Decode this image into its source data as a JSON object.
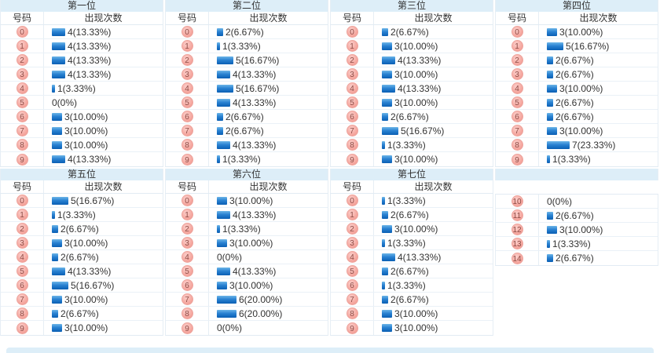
{
  "labels": {
    "number_header": "号码",
    "count_header": "出现次数"
  },
  "colors": {
    "band_bg": "#ddeef8",
    "bar_top": "#6cb5e8",
    "bar_bottom": "#0a5fb4",
    "badge_bg": "#f5a79f",
    "badge_border": "#eda49d",
    "badge_text": "#8d4a44",
    "row_border": "#eaf1f7",
    "text": "#333333"
  },
  "sections": [
    {
      "tables": [
        {
          "title": "第一位",
          "show_headers": true,
          "rows": [
            {
              "n": 0,
              "count": 4,
              "label": "4(13.33%)"
            },
            {
              "n": 1,
              "count": 4,
              "label": "4(13.33%)"
            },
            {
              "n": 2,
              "count": 4,
              "label": "4(13.33%)"
            },
            {
              "n": 3,
              "count": 4,
              "label": "4(13.33%)"
            },
            {
              "n": 4,
              "count": 1,
              "label": "1(3.33%)"
            },
            {
              "n": 5,
              "count": 0,
              "label": "0(0%)"
            },
            {
              "n": 6,
              "count": 3,
              "label": "3(10.00%)"
            },
            {
              "n": 7,
              "count": 3,
              "label": "3(10.00%)"
            },
            {
              "n": 8,
              "count": 3,
              "label": "3(10.00%)"
            },
            {
              "n": 9,
              "count": 4,
              "label": "4(13.33%)"
            }
          ]
        },
        {
          "title": "第二位",
          "show_headers": true,
          "rows": [
            {
              "n": 0,
              "count": 2,
              "label": "2(6.67%)"
            },
            {
              "n": 1,
              "count": 1,
              "label": "1(3.33%)"
            },
            {
              "n": 2,
              "count": 5,
              "label": "5(16.67%)"
            },
            {
              "n": 3,
              "count": 4,
              "label": "4(13.33%)"
            },
            {
              "n": 4,
              "count": 5,
              "label": "5(16.67%)"
            },
            {
              "n": 5,
              "count": 4,
              "label": "4(13.33%)"
            },
            {
              "n": 6,
              "count": 2,
              "label": "2(6.67%)"
            },
            {
              "n": 7,
              "count": 2,
              "label": "2(6.67%)"
            },
            {
              "n": 8,
              "count": 4,
              "label": "4(13.33%)"
            },
            {
              "n": 9,
              "count": 1,
              "label": "1(3.33%)"
            }
          ]
        },
        {
          "title": "第三位",
          "show_headers": true,
          "rows": [
            {
              "n": 0,
              "count": 2,
              "label": "2(6.67%)"
            },
            {
              "n": 1,
              "count": 3,
              "label": "3(10.00%)"
            },
            {
              "n": 2,
              "count": 4,
              "label": "4(13.33%)"
            },
            {
              "n": 3,
              "count": 3,
              "label": "3(10.00%)"
            },
            {
              "n": 4,
              "count": 4,
              "label": "4(13.33%)"
            },
            {
              "n": 5,
              "count": 3,
              "label": "3(10.00%)"
            },
            {
              "n": 6,
              "count": 2,
              "label": "2(6.67%)"
            },
            {
              "n": 7,
              "count": 5,
              "label": "5(16.67%)"
            },
            {
              "n": 8,
              "count": 1,
              "label": "1(3.33%)"
            },
            {
              "n": 9,
              "count": 3,
              "label": "3(10.00%)"
            }
          ]
        },
        {
          "title": "第四位",
          "show_headers": true,
          "rows": [
            {
              "n": 0,
              "count": 3,
              "label": "3(10.00%)"
            },
            {
              "n": 1,
              "count": 5,
              "label": "5(16.67%)"
            },
            {
              "n": 2,
              "count": 2,
              "label": "2(6.67%)"
            },
            {
              "n": 3,
              "count": 2,
              "label": "2(6.67%)"
            },
            {
              "n": 4,
              "count": 3,
              "label": "3(10.00%)"
            },
            {
              "n": 5,
              "count": 2,
              "label": "2(6.67%)"
            },
            {
              "n": 6,
              "count": 2,
              "label": "2(6.67%)"
            },
            {
              "n": 7,
              "count": 3,
              "label": "3(10.00%)"
            },
            {
              "n": 8,
              "count": 7,
              "label": "7(23.33%)"
            },
            {
              "n": 9,
              "count": 1,
              "label": "1(3.33%)"
            }
          ]
        }
      ]
    },
    {
      "tables": [
        {
          "title": "第五位",
          "show_headers": true,
          "rows": [
            {
              "n": 0,
              "count": 5,
              "label": "5(16.67%)"
            },
            {
              "n": 1,
              "count": 1,
              "label": "1(3.33%)"
            },
            {
              "n": 2,
              "count": 2,
              "label": "2(6.67%)"
            },
            {
              "n": 3,
              "count": 3,
              "label": "3(10.00%)"
            },
            {
              "n": 4,
              "count": 2,
              "label": "2(6.67%)"
            },
            {
              "n": 5,
              "count": 4,
              "label": "4(13.33%)"
            },
            {
              "n": 6,
              "count": 5,
              "label": "5(16.67%)"
            },
            {
              "n": 7,
              "count": 3,
              "label": "3(10.00%)"
            },
            {
              "n": 8,
              "count": 2,
              "label": "2(6.67%)"
            },
            {
              "n": 9,
              "count": 3,
              "label": "3(10.00%)"
            }
          ]
        },
        {
          "title": "第六位",
          "show_headers": true,
          "rows": [
            {
              "n": 0,
              "count": 3,
              "label": "3(10.00%)"
            },
            {
              "n": 1,
              "count": 4,
              "label": "4(13.33%)"
            },
            {
              "n": 2,
              "count": 1,
              "label": "1(3.33%)"
            },
            {
              "n": 3,
              "count": 3,
              "label": "3(10.00%)"
            },
            {
              "n": 4,
              "count": 0,
              "label": "0(0%)"
            },
            {
              "n": 5,
              "count": 4,
              "label": "4(13.33%)"
            },
            {
              "n": 6,
              "count": 3,
              "label": "3(10.00%)"
            },
            {
              "n": 7,
              "count": 6,
              "label": "6(20.00%)"
            },
            {
              "n": 8,
              "count": 6,
              "label": "6(20.00%)"
            },
            {
              "n": 9,
              "count": 0,
              "label": "0(0%)"
            }
          ]
        },
        {
          "title": "第七位",
          "show_headers": true,
          "rows": [
            {
              "n": 0,
              "count": 1,
              "label": "1(3.33%)"
            },
            {
              "n": 1,
              "count": 2,
              "label": "2(6.67%)"
            },
            {
              "n": 2,
              "count": 3,
              "label": "3(10.00%)"
            },
            {
              "n": 3,
              "count": 1,
              "label": "1(3.33%)"
            },
            {
              "n": 4,
              "count": 4,
              "label": "4(13.33%)"
            },
            {
              "n": 5,
              "count": 2,
              "label": "2(6.67%)"
            },
            {
              "n": 6,
              "count": 1,
              "label": "1(3.33%)"
            },
            {
              "n": 7,
              "count": 2,
              "label": "2(6.67%)"
            },
            {
              "n": 8,
              "count": 3,
              "label": "3(10.00%)"
            },
            {
              "n": 9,
              "count": 3,
              "label": "3(10.00%)"
            }
          ]
        },
        {
          "title": "",
          "show_headers": false,
          "rows": [
            {
              "n": 10,
              "count": 0,
              "label": "0(0%)"
            },
            {
              "n": 11,
              "count": 2,
              "label": "2(6.67%)"
            },
            {
              "n": 12,
              "count": 3,
              "label": "3(10.00%)"
            },
            {
              "n": 13,
              "count": 1,
              "label": "1(3.33%)"
            },
            {
              "n": 14,
              "count": 2,
              "label": "2(6.67%)"
            }
          ]
        }
      ]
    }
  ],
  "chart_data": [
    {
      "type": "bar",
      "title": "第一位",
      "xlabel": "号码",
      "ylabel": "出现次数",
      "categories": [
        "0",
        "1",
        "2",
        "3",
        "4",
        "5",
        "6",
        "7",
        "8",
        "9"
      ],
      "values": [
        4,
        4,
        4,
        4,
        1,
        0,
        3,
        3,
        3,
        4
      ],
      "percents": [
        "13.33%",
        "13.33%",
        "13.33%",
        "13.33%",
        "3.33%",
        "0%",
        "10.00%",
        "10.00%",
        "10.00%",
        "13.33%"
      ]
    },
    {
      "type": "bar",
      "title": "第二位",
      "xlabel": "号码",
      "ylabel": "出现次数",
      "categories": [
        "0",
        "1",
        "2",
        "3",
        "4",
        "5",
        "6",
        "7",
        "8",
        "9"
      ],
      "values": [
        2,
        1,
        5,
        4,
        5,
        4,
        2,
        2,
        4,
        1
      ],
      "percents": [
        "6.67%",
        "3.33%",
        "16.67%",
        "13.33%",
        "16.67%",
        "13.33%",
        "6.67%",
        "6.67%",
        "13.33%",
        "3.33%"
      ]
    },
    {
      "type": "bar",
      "title": "第三位",
      "xlabel": "号码",
      "ylabel": "出现次数",
      "categories": [
        "0",
        "1",
        "2",
        "3",
        "4",
        "5",
        "6",
        "7",
        "8",
        "9"
      ],
      "values": [
        2,
        3,
        4,
        3,
        4,
        3,
        2,
        5,
        1,
        3
      ],
      "percents": [
        "6.67%",
        "10.00%",
        "13.33%",
        "10.00%",
        "13.33%",
        "10.00%",
        "6.67%",
        "16.67%",
        "3.33%",
        "10.00%"
      ]
    },
    {
      "type": "bar",
      "title": "第四位",
      "xlabel": "号码",
      "ylabel": "出现次数",
      "categories": [
        "0",
        "1",
        "2",
        "3",
        "4",
        "5",
        "6",
        "7",
        "8",
        "9"
      ],
      "values": [
        3,
        5,
        2,
        2,
        3,
        2,
        2,
        3,
        7,
        1
      ],
      "percents": [
        "10.00%",
        "16.67%",
        "6.67%",
        "6.67%",
        "10.00%",
        "6.67%",
        "6.67%",
        "10.00%",
        "23.33%",
        "3.33%"
      ]
    },
    {
      "type": "bar",
      "title": "第五位",
      "xlabel": "号码",
      "ylabel": "出现次数",
      "categories": [
        "0",
        "1",
        "2",
        "3",
        "4",
        "5",
        "6",
        "7",
        "8",
        "9"
      ],
      "values": [
        5,
        1,
        2,
        3,
        2,
        4,
        5,
        3,
        2,
        3
      ],
      "percents": [
        "16.67%",
        "3.33%",
        "6.67%",
        "10.00%",
        "6.67%",
        "13.33%",
        "16.67%",
        "10.00%",
        "6.67%",
        "10.00%"
      ]
    },
    {
      "type": "bar",
      "title": "第六位",
      "xlabel": "号码",
      "ylabel": "出现次数",
      "categories": [
        "0",
        "1",
        "2",
        "3",
        "4",
        "5",
        "6",
        "7",
        "8",
        "9"
      ],
      "values": [
        3,
        4,
        1,
        3,
        0,
        4,
        3,
        6,
        6,
        0
      ],
      "percents": [
        "10.00%",
        "13.33%",
        "3.33%",
        "10.00%",
        "0%",
        "13.33%",
        "10.00%",
        "20.00%",
        "20.00%",
        "0%"
      ]
    },
    {
      "type": "bar",
      "title": "第七位",
      "xlabel": "号码",
      "ylabel": "出现次数",
      "categories": [
        "0",
        "1",
        "2",
        "3",
        "4",
        "5",
        "6",
        "7",
        "8",
        "9",
        "10",
        "11",
        "12",
        "13",
        "14"
      ],
      "values": [
        1,
        2,
        3,
        1,
        4,
        2,
        1,
        2,
        3,
        3,
        0,
        2,
        3,
        1,
        2
      ],
      "percents": [
        "3.33%",
        "6.67%",
        "10.00%",
        "3.33%",
        "13.33%",
        "6.67%",
        "3.33%",
        "6.67%",
        "10.00%",
        "10.00%",
        "0%",
        "6.67%",
        "10.00%",
        "3.33%",
        "6.67%"
      ],
      "note": "numbers 10-14 shown as a continuation block in the fourth column"
    }
  ]
}
